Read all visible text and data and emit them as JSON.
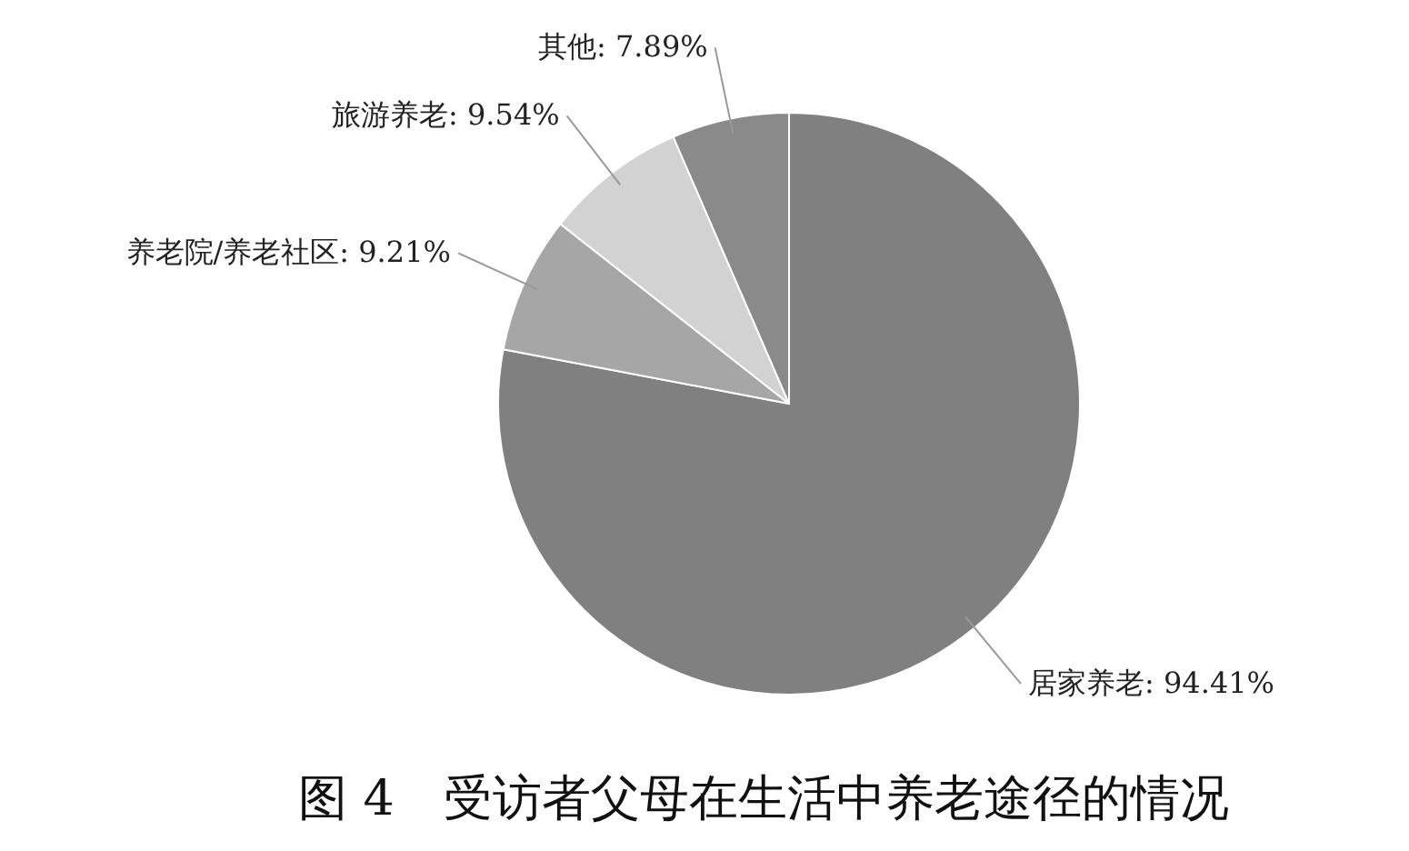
{
  "chart_data": {
    "type": "pie",
    "title": "图 4　受访者父母在生活中养老途径的情况",
    "categories": [
      "居家养老",
      "养老院/养老社区",
      "旅游养老",
      "其他"
    ],
    "values": [
      94.41,
      9.21,
      9.54,
      7.89
    ],
    "value_labels": [
      "94.41%",
      "9.21%",
      "9.54%",
      "7.89%"
    ],
    "colors": [
      "#808080",
      "#a6a6a6",
      "#d2d2d2",
      "#8a8a8a"
    ]
  }
}
